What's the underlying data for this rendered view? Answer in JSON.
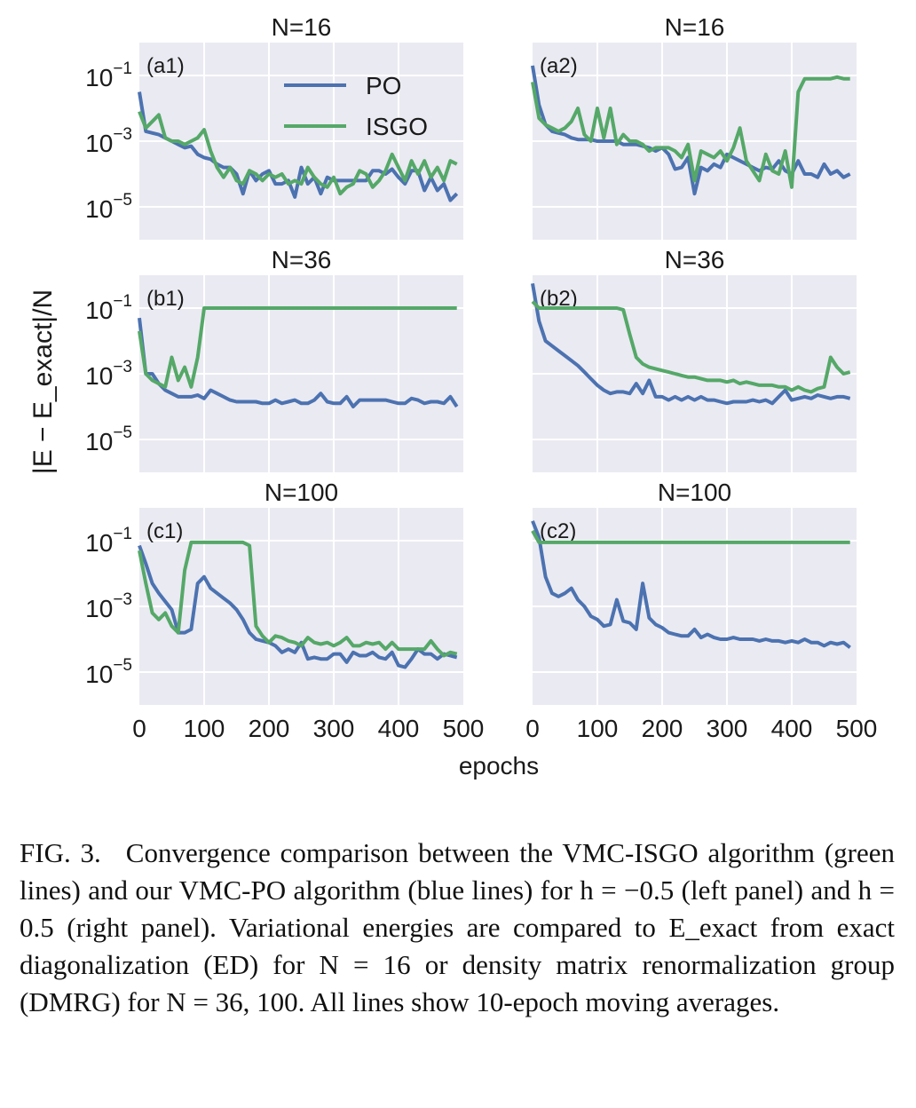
{
  "figure": {
    "ylabel": "|E − E_exact|/N",
    "xlabel": "epochs",
    "legend": {
      "position": "top-center of panel a1",
      "entries": [
        "PO",
        "ISGO"
      ]
    }
  },
  "colors": {
    "po": "#4c72b0",
    "isgo": "#55a868",
    "panel_bg": "#eaeaf2",
    "grid": "#ffffff"
  },
  "chart_data": [
    {
      "type": "line",
      "panel": "(a1)",
      "title": "N=16",
      "yscale": "log",
      "xlim": [
        0,
        500
      ],
      "ylim_exp": [
        -6,
        0
      ],
      "grid": true,
      "x": [
        0,
        10,
        20,
        30,
        40,
        50,
        60,
        70,
        80,
        90,
        100,
        110,
        120,
        130,
        140,
        150,
        160,
        170,
        180,
        190,
        200,
        210,
        220,
        230,
        240,
        250,
        260,
        270,
        280,
        290,
        300,
        310,
        320,
        330,
        340,
        350,
        360,
        370,
        380,
        390,
        400,
        410,
        420,
        430,
        440,
        450,
        460,
        470,
        480,
        490
      ],
      "series": [
        {
          "name": "PO",
          "log10_values": [
            -1.5,
            -2.7,
            -2.75,
            -2.8,
            -2.9,
            -3.0,
            -3.1,
            -3.2,
            -3.15,
            -3.4,
            -3.5,
            -3.55,
            -3.7,
            -3.8,
            -3.8,
            -4.0,
            -4.6,
            -3.9,
            -4.2,
            -4.0,
            -3.9,
            -4.3,
            -4.3,
            -4.2,
            -4.7,
            -3.8,
            -4.3,
            -4.1,
            -4.6,
            -4.1,
            -4.2,
            -4.2,
            -4.2,
            -4.2,
            -4.2,
            -4.2,
            -3.9,
            -3.9,
            -4.0,
            -3.85,
            -4.1,
            -4.3,
            -3.9,
            -3.9,
            -4.5,
            -4.1,
            -4.5,
            -4.3,
            -4.8,
            -4.6
          ]
        },
        {
          "name": "ISGO",
          "log10_values": [
            -2.1,
            -2.6,
            -2.4,
            -2.2,
            -2.9,
            -3.0,
            -3.0,
            -3.1,
            -3.0,
            -2.9,
            -2.65,
            -3.3,
            -3.8,
            -4.1,
            -3.8,
            -4.2,
            -4.3,
            -3.9,
            -4.0,
            -4.2,
            -4.0,
            -4.1,
            -4.0,
            -4.3,
            -4.2,
            -4.3,
            -3.8,
            -4.1,
            -4.3,
            -4.4,
            -4.1,
            -4.6,
            -4.4,
            -4.3,
            -3.9,
            -4.0,
            -4.4,
            -4.2,
            -3.9,
            -3.4,
            -3.8,
            -4.2,
            -3.6,
            -4.0,
            -3.6,
            -4.1,
            -3.8,
            -4.2,
            -3.6,
            -3.7
          ]
        }
      ]
    },
    {
      "type": "line",
      "panel": "(a2)",
      "title": "N=16",
      "yscale": "log",
      "xlim": [
        0,
        500
      ],
      "ylim_exp": [
        -6,
        0
      ],
      "grid": true,
      "x": [
        0,
        10,
        20,
        30,
        40,
        50,
        60,
        70,
        80,
        90,
        100,
        110,
        120,
        130,
        140,
        150,
        160,
        170,
        180,
        190,
        200,
        210,
        220,
        230,
        240,
        250,
        260,
        270,
        280,
        290,
        300,
        310,
        320,
        330,
        340,
        350,
        360,
        370,
        380,
        390,
        400,
        410,
        420,
        430,
        440,
        450,
        460,
        470,
        480,
        490
      ],
      "series": [
        {
          "name": "PO",
          "log10_values": [
            -0.7,
            -1.9,
            -2.5,
            -2.7,
            -2.75,
            -2.8,
            -2.9,
            -2.95,
            -2.95,
            -2.95,
            -3.0,
            -3.0,
            -3.0,
            -3.0,
            -3.1,
            -3.1,
            -3.1,
            -3.15,
            -3.2,
            -3.3,
            -3.2,
            -3.4,
            -3.85,
            -3.8,
            -3.5,
            -4.6,
            -3.8,
            -3.9,
            -3.7,
            -3.8,
            -3.4,
            -3.5,
            -3.6,
            -3.7,
            -3.8,
            -3.9,
            -3.8,
            -3.85,
            -3.6,
            -3.9,
            -4.0,
            -3.6,
            -4.0,
            -4.0,
            -4.1,
            -3.7,
            -4.0,
            -3.9,
            -4.1,
            -4.0
          ]
        },
        {
          "name": "ISGO",
          "log10_values": [
            -1.2,
            -2.3,
            -2.5,
            -2.6,
            -2.7,
            -2.6,
            -2.4,
            -2.0,
            -2.8,
            -3.0,
            -2.0,
            -2.9,
            -2.0,
            -3.1,
            -2.8,
            -3.0,
            -3.0,
            -3.1,
            -3.3,
            -3.2,
            -3.2,
            -3.2,
            -3.3,
            -3.5,
            -3.1,
            -4.2,
            -3.3,
            -3.4,
            -3.5,
            -3.3,
            -3.6,
            -3.2,
            -2.6,
            -3.6,
            -3.9,
            -4.2,
            -3.4,
            -3.9,
            -4.0,
            -3.3,
            -4.4,
            -1.5,
            -1.1,
            -1.1,
            -1.1,
            -1.1,
            -1.1,
            -1.05,
            -1.1,
            -1.1
          ]
        }
      ]
    },
    {
      "type": "line",
      "panel": "(b1)",
      "title": "N=36",
      "yscale": "log",
      "xlim": [
        0,
        500
      ],
      "ylim_exp": [
        -6,
        0
      ],
      "grid": true,
      "x": [
        0,
        10,
        20,
        30,
        40,
        50,
        60,
        70,
        80,
        90,
        100,
        110,
        120,
        130,
        140,
        150,
        160,
        170,
        180,
        190,
        200,
        210,
        220,
        230,
        240,
        250,
        260,
        270,
        280,
        290,
        300,
        310,
        320,
        330,
        340,
        350,
        360,
        370,
        380,
        390,
        400,
        410,
        420,
        430,
        440,
        450,
        460,
        470,
        480,
        490
      ],
      "series": [
        {
          "name": "PO",
          "log10_values": [
            -1.3,
            -3.0,
            -3.0,
            -3.3,
            -3.5,
            -3.6,
            -3.7,
            -3.7,
            -3.7,
            -3.65,
            -3.75,
            -3.5,
            -3.6,
            -3.7,
            -3.8,
            -3.85,
            -3.85,
            -3.85,
            -3.85,
            -3.9,
            -3.9,
            -3.8,
            -3.9,
            -3.85,
            -3.8,
            -3.9,
            -3.9,
            -3.8,
            -3.6,
            -3.85,
            -3.9,
            -3.9,
            -3.7,
            -4.0,
            -3.8,
            -3.8,
            -3.8,
            -3.8,
            -3.8,
            -3.85,
            -3.9,
            -3.9,
            -3.75,
            -3.8,
            -3.9,
            -3.85,
            -3.85,
            -3.9,
            -3.7,
            -4.0
          ]
        },
        {
          "name": "ISGO",
          "log10_values": [
            -1.7,
            -3.0,
            -3.2,
            -3.3,
            -3.4,
            -2.5,
            -3.2,
            -2.8,
            -3.4,
            -2.5,
            -1.0,
            -1.0,
            -1.0,
            -1.0,
            -1.0,
            -1.0,
            -1.0,
            -1.0,
            -1.0,
            -1.0,
            -1.0,
            -1.0,
            -1.0,
            -1.0,
            -1.0,
            -1.0,
            -1.0,
            -1.0,
            -1.0,
            -1.0,
            -1.0,
            -1.0,
            -1.0,
            -1.0,
            -1.0,
            -1.0,
            -1.0,
            -1.0,
            -1.0,
            -1.0,
            -1.0,
            -1.0,
            -1.0,
            -1.0,
            -1.0,
            -1.0,
            -1.0,
            -1.0,
            -1.0,
            -1.0
          ]
        }
      ]
    },
    {
      "type": "line",
      "panel": "(b2)",
      "title": "N=36",
      "yscale": "log",
      "xlim": [
        0,
        500
      ],
      "ylim_exp": [
        -6,
        0
      ],
      "grid": true,
      "x": [
        0,
        10,
        20,
        30,
        40,
        50,
        60,
        70,
        80,
        90,
        100,
        110,
        120,
        130,
        140,
        150,
        160,
        170,
        180,
        190,
        200,
        210,
        220,
        230,
        240,
        250,
        260,
        270,
        280,
        290,
        300,
        310,
        320,
        330,
        340,
        350,
        360,
        370,
        380,
        390,
        400,
        410,
        420,
        430,
        440,
        450,
        460,
        470,
        480,
        490
      ],
      "series": [
        {
          "name": "PO",
          "log10_values": [
            -0.25,
            -1.4,
            -2.0,
            -2.15,
            -2.3,
            -2.45,
            -2.6,
            -2.75,
            -2.95,
            -3.15,
            -3.35,
            -3.5,
            -3.6,
            -3.55,
            -3.55,
            -3.6,
            -3.3,
            -3.6,
            -3.2,
            -3.7,
            -3.7,
            -3.8,
            -3.7,
            -3.8,
            -3.7,
            -3.8,
            -3.7,
            -3.8,
            -3.8,
            -3.85,
            -3.9,
            -3.85,
            -3.85,
            -3.85,
            -3.8,
            -3.85,
            -3.8,
            -3.9,
            -3.7,
            -3.5,
            -3.8,
            -3.75,
            -3.7,
            -3.75,
            -3.65,
            -3.7,
            -3.75,
            -3.7,
            -3.7,
            -3.75
          ]
        },
        {
          "name": "ISGO",
          "log10_values": [
            -0.8,
            -1.0,
            -1.0,
            -1.0,
            -1.0,
            -1.0,
            -1.0,
            -1.0,
            -1.0,
            -1.0,
            -1.0,
            -1.0,
            -1.0,
            -1.0,
            -1.05,
            -1.8,
            -2.5,
            -2.7,
            -2.8,
            -2.85,
            -2.9,
            -2.95,
            -3.0,
            -3.05,
            -3.1,
            -3.1,
            -3.15,
            -3.2,
            -3.2,
            -3.2,
            -3.25,
            -3.2,
            -3.3,
            -3.25,
            -3.3,
            -3.35,
            -3.35,
            -3.35,
            -3.4,
            -3.4,
            -3.5,
            -3.4,
            -3.5,
            -3.55,
            -3.45,
            -3.4,
            -2.5,
            -2.8,
            -3.0,
            -2.95
          ]
        }
      ]
    },
    {
      "type": "line",
      "panel": "(c1)",
      "title": "N=100",
      "yscale": "log",
      "xlim": [
        0,
        500
      ],
      "ylim_exp": [
        -6,
        0
      ],
      "grid": true,
      "x": [
        0,
        10,
        20,
        30,
        40,
        50,
        60,
        70,
        80,
        90,
        100,
        110,
        120,
        130,
        140,
        150,
        160,
        170,
        180,
        190,
        200,
        210,
        220,
        230,
        240,
        250,
        260,
        270,
        280,
        290,
        300,
        310,
        320,
        330,
        340,
        350,
        360,
        370,
        380,
        390,
        400,
        410,
        420,
        430,
        440,
        450,
        460,
        470,
        480,
        490
      ],
      "series": [
        {
          "name": "PO",
          "log10_values": [
            -1.15,
            -1.7,
            -2.3,
            -2.6,
            -2.85,
            -3.1,
            -3.8,
            -3.8,
            -3.7,
            -2.3,
            -2.1,
            -2.45,
            -2.6,
            -2.75,
            -2.9,
            -3.1,
            -3.4,
            -3.8,
            -4.0,
            -4.05,
            -4.1,
            -4.2,
            -4.4,
            -4.3,
            -4.4,
            -4.1,
            -4.6,
            -4.55,
            -4.6,
            -4.6,
            -4.45,
            -4.45,
            -4.7,
            -4.4,
            -4.5,
            -4.5,
            -4.4,
            -4.55,
            -4.6,
            -4.4,
            -4.8,
            -4.85,
            -4.6,
            -4.3,
            -4.45,
            -4.45,
            -4.6,
            -4.45,
            -4.5,
            -4.55
          ]
        },
        {
          "name": "ISGO",
          "log10_values": [
            -1.3,
            -2.3,
            -3.2,
            -3.4,
            -3.2,
            -3.6,
            -3.8,
            -1.9,
            -1.05,
            -1.05,
            -1.05,
            -1.05,
            -1.05,
            -1.05,
            -1.05,
            -1.05,
            -1.05,
            -1.15,
            -3.6,
            -3.9,
            -4.1,
            -3.9,
            -3.95,
            -4.05,
            -4.1,
            -4.2,
            -3.95,
            -4.1,
            -4.15,
            -4.1,
            -4.2,
            -4.1,
            -3.95,
            -4.2,
            -4.2,
            -4.1,
            -4.15,
            -4.1,
            -4.3,
            -4.1,
            -4.3,
            -4.3,
            -4.3,
            -4.3,
            -4.3,
            -4.05,
            -4.3,
            -4.5,
            -4.4,
            -4.45
          ]
        }
      ]
    },
    {
      "type": "line",
      "panel": "(c2)",
      "title": "N=100",
      "yscale": "log",
      "xlim": [
        0,
        500
      ],
      "ylim_exp": [
        -6,
        0
      ],
      "grid": true,
      "x": [
        0,
        10,
        20,
        30,
        40,
        50,
        60,
        70,
        80,
        90,
        100,
        110,
        120,
        130,
        140,
        150,
        160,
        170,
        180,
        190,
        200,
        210,
        220,
        230,
        240,
        250,
        260,
        270,
        280,
        290,
        300,
        310,
        320,
        330,
        340,
        350,
        360,
        370,
        380,
        390,
        400,
        410,
        420,
        430,
        440,
        450,
        460,
        470,
        480,
        490
      ],
      "series": [
        {
          "name": "PO",
          "log10_values": [
            -0.4,
            -0.9,
            -2.1,
            -2.6,
            -2.7,
            -2.6,
            -2.45,
            -2.8,
            -3.0,
            -3.3,
            -3.4,
            -3.6,
            -3.55,
            -2.8,
            -3.45,
            -3.5,
            -3.7,
            -2.3,
            -3.35,
            -3.55,
            -3.65,
            -3.8,
            -3.85,
            -3.9,
            -3.9,
            -3.7,
            -3.95,
            -3.85,
            -3.95,
            -4.0,
            -4.0,
            -3.95,
            -4.0,
            -4.0,
            -4.0,
            -4.05,
            -4.0,
            -4.05,
            -4.05,
            -4.1,
            -4.05,
            -4.1,
            -4.0,
            -4.1,
            -4.1,
            -4.2,
            -4.1,
            -4.15,
            -4.1,
            -4.25
          ]
        },
        {
          "name": "ISGO",
          "log10_values": [
            -0.7,
            -1.05,
            -1.05,
            -1.05,
            -1.05,
            -1.05,
            -1.05,
            -1.05,
            -1.05,
            -1.05,
            -1.05,
            -1.05,
            -1.05,
            -1.05,
            -1.05,
            -1.05,
            -1.05,
            -1.05,
            -1.05,
            -1.05,
            -1.05,
            -1.05,
            -1.05,
            -1.05,
            -1.05,
            -1.05,
            -1.05,
            -1.05,
            -1.05,
            -1.05,
            -1.05,
            -1.05,
            -1.05,
            -1.05,
            -1.05,
            -1.05,
            -1.05,
            -1.05,
            -1.05,
            -1.05,
            -1.05,
            -1.05,
            -1.05,
            -1.05,
            -1.05,
            -1.05,
            -1.05,
            -1.05,
            -1.05,
            -1.05
          ]
        }
      ]
    }
  ],
  "caption": {
    "label": "FIG. 3.",
    "text": "Convergence comparison between the VMC-ISGO algorithm (green lines) and our VMC-PO algorithm (blue lines) for h = −0.5 (left panel) and h = 0.5 (right panel). Variational energies are compared to E_exact from exact diagonalization (ED) for N = 16 or density matrix renormalization group (DMRG) for N = 36, 100. All lines show 10-epoch moving averages."
  }
}
